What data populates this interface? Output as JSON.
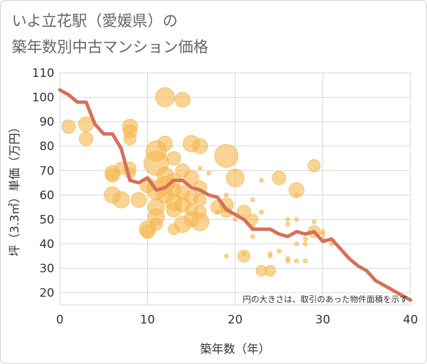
{
  "title_line1": "いよ立花駅（愛媛県）の",
  "title_line2": "築年数別中古マンション価格",
  "chart_data": {
    "type": "scatter",
    "xlabel": "築年数（年）",
    "ylabel": "坪（3.3㎡）単価（万円）",
    "xlim": [
      0,
      40
    ],
    "ylim": [
      15,
      110
    ],
    "xticks": [
      "0",
      "10",
      "20",
      "30",
      "40"
    ],
    "yticks": [
      "20",
      "30",
      "40",
      "50",
      "60",
      "70",
      "80",
      "90",
      "100",
      "110"
    ],
    "grid": true,
    "note": "円の大きさは、取引のあった物件面積を示す",
    "colors": {
      "bubble": "#f5b84e",
      "line": "#d4705a",
      "grid": "#cfd8e3"
    },
    "bubbles": [
      [
        1,
        88,
        10
      ],
      [
        3,
        89,
        11
      ],
      [
        3,
        83,
        10
      ],
      [
        6,
        69,
        11
      ],
      [
        6,
        68,
        10
      ],
      [
        6,
        60,
        12
      ],
      [
        7,
        71,
        9
      ],
      [
        7,
        58,
        12
      ],
      [
        8,
        88,
        11
      ],
      [
        8,
        86,
        10
      ],
      [
        8,
        83,
        9
      ],
      [
        8,
        71,
        9
      ],
      [
        8,
        69,
        8
      ],
      [
        9,
        58,
        11
      ],
      [
        10,
        46,
        12
      ],
      [
        10,
        45,
        10
      ],
      [
        10,
        64,
        11
      ],
      [
        11,
        78,
        15
      ],
      [
        11,
        73,
        18
      ],
      [
        11,
        62,
        14
      ],
      [
        11,
        55,
        12
      ],
      [
        11,
        51,
        12
      ],
      [
        11,
        48,
        9
      ],
      [
        12,
        100,
        14
      ],
      [
        12,
        81,
        11
      ],
      [
        12,
        68,
        12
      ],
      [
        12,
        64,
        13
      ],
      [
        12,
        60,
        12
      ],
      [
        13,
        75,
        10
      ],
      [
        13,
        66,
        11
      ],
      [
        13,
        62,
        10
      ],
      [
        13,
        57,
        12
      ],
      [
        13,
        54,
        11
      ],
      [
        13,
        46,
        8
      ],
      [
        14,
        99,
        11
      ],
      [
        14,
        70,
        10
      ],
      [
        14,
        61,
        10
      ],
      [
        14,
        56,
        11
      ],
      [
        14,
        48,
        12
      ],
      [
        15,
        81,
        12
      ],
      [
        15,
        67,
        11
      ],
      [
        15,
        59,
        10
      ],
      [
        15,
        54,
        9
      ],
      [
        15,
        50,
        11
      ],
      [
        16,
        80,
        11
      ],
      [
        16,
        71,
        3
      ],
      [
        16,
        63,
        10
      ],
      [
        16,
        58,
        9
      ],
      [
        16,
        53,
        9
      ],
      [
        16,
        49,
        13
      ],
      [
        17,
        69,
        3
      ],
      [
        18,
        55,
        10
      ],
      [
        18,
        53,
        3
      ],
      [
        19,
        76,
        17
      ],
      [
        19,
        60,
        3
      ],
      [
        19,
        56,
        10
      ],
      [
        19,
        53,
        8
      ],
      [
        19,
        35,
        3
      ],
      [
        20,
        67,
        13
      ],
      [
        20,
        50,
        3
      ],
      [
        21,
        53,
        10
      ],
      [
        21,
        35,
        9
      ],
      [
        21,
        36,
        3
      ],
      [
        22,
        58,
        3
      ],
      [
        22,
        50,
        8
      ],
      [
        22,
        47,
        3
      ],
      [
        22,
        43,
        3
      ],
      [
        23,
        53,
        3
      ],
      [
        23,
        66,
        3
      ],
      [
        23,
        29,
        8
      ],
      [
        24,
        29,
        8
      ],
      [
        24,
        35,
        3
      ],
      [
        24,
        36,
        3
      ],
      [
        25,
        67,
        10
      ],
      [
        25,
        37,
        3
      ],
      [
        26,
        50,
        3
      ],
      [
        26,
        48,
        3
      ],
      [
        26,
        34,
        3
      ],
      [
        26,
        33,
        3
      ],
      [
        27,
        62,
        11
      ],
      [
        27,
        60,
        3
      ],
      [
        27,
        50,
        3
      ],
      [
        27,
        40,
        3
      ],
      [
        27,
        33,
        3
      ],
      [
        28,
        42,
        3
      ],
      [
        28,
        40,
        3
      ],
      [
        28,
        33,
        3
      ],
      [
        29,
        72,
        9
      ],
      [
        29,
        49,
        3
      ],
      [
        29,
        45,
        9
      ],
      [
        30,
        45,
        3
      ],
      [
        30,
        44,
        3
      ],
      [
        30,
        42,
        3
      ],
      [
        31,
        40,
        3
      ]
    ],
    "trend_x": [
      0,
      1,
      2,
      3,
      4,
      5,
      6,
      7,
      8,
      9,
      10,
      11,
      12,
      13,
      14,
      15,
      16,
      17,
      18,
      19,
      20,
      21,
      22,
      23,
      24,
      25,
      26,
      27,
      28,
      29,
      30,
      31,
      32,
      33,
      34,
      35,
      36,
      37,
      38,
      39,
      40
    ],
    "trend_y": [
      103,
      101,
      98,
      98,
      89,
      85,
      85,
      79,
      66,
      65,
      67,
      62,
      63,
      66,
      66,
      63,
      62,
      60,
      59,
      54,
      52,
      50,
      46,
      46,
      46,
      44,
      43,
      45,
      44,
      45,
      41,
      42,
      38,
      34,
      31,
      29,
      25,
      23,
      21,
      19,
      17
    ]
  }
}
